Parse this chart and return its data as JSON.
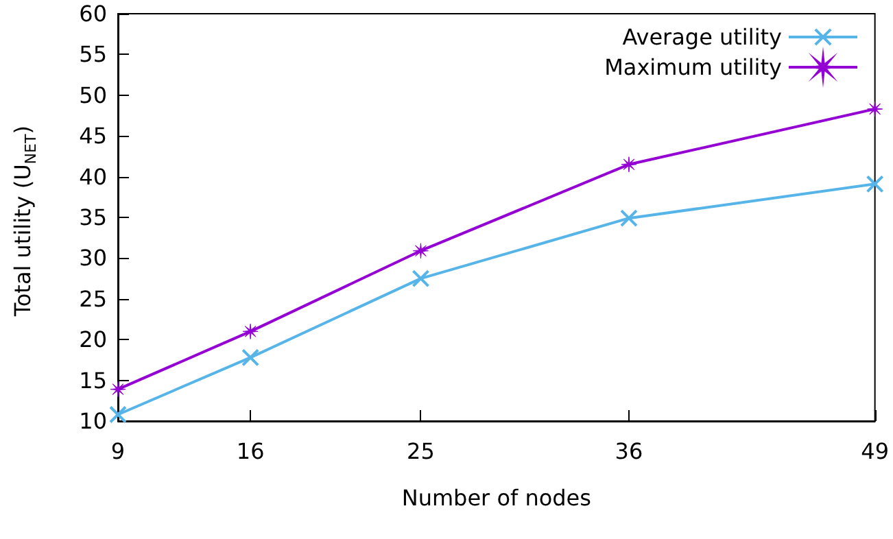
{
  "chart_data": {
    "type": "line",
    "xlabel": "Number of nodes",
    "ylabel": "Total utility (U$_{NET}$)",
    "x": [
      9,
      16,
      25,
      36,
      49
    ],
    "xlim": [
      9,
      49
    ],
    "xticks": [
      9,
      16,
      25,
      36,
      49
    ],
    "ylim": [
      10,
      60
    ],
    "yticks": [
      10,
      15,
      20,
      25,
      30,
      35,
      40,
      45,
      50,
      55,
      60
    ],
    "series": [
      {
        "name": "Average utility",
        "color": "#56b4e9",
        "marker": "cross",
        "values": [
          10.8,
          17.8,
          27.5,
          34.9,
          39.1
        ]
      },
      {
        "name": "Maximum utility",
        "color": "#9400d3",
        "marker": "star",
        "values": [
          13.9,
          21.0,
          30.9,
          41.5,
          48.3
        ]
      }
    ],
    "grid": false,
    "legend": "top right",
    "line_style": "solid"
  }
}
